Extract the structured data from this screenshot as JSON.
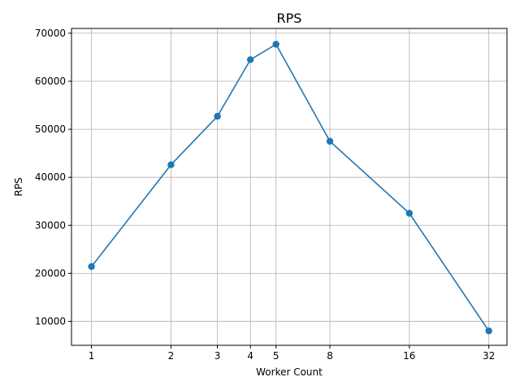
{
  "chart_data": {
    "type": "line",
    "title": "RPS",
    "xlabel": "Worker Count",
    "ylabel": "RPS",
    "x_scale": "log2",
    "x_ticks": [
      1,
      2,
      3,
      4,
      5,
      8,
      16,
      32
    ],
    "x_tick_labels": [
      "1",
      "2",
      "3",
      "4",
      "5",
      "8",
      "16",
      "32"
    ],
    "y_ticks": [
      10000,
      20000,
      30000,
      40000,
      50000,
      60000,
      70000
    ],
    "y_tick_labels": [
      "10000",
      "20000",
      "30000",
      "40000",
      "50000",
      "60000",
      "70000"
    ],
    "ylim": [
      5000,
      71000
    ],
    "grid": true,
    "series": [
      {
        "color": "#1f77b4",
        "marker": "circle",
        "points": [
          {
            "x": 1,
            "y": 21400
          },
          {
            "x": 2,
            "y": 42600
          },
          {
            "x": 3,
            "y": 52700
          },
          {
            "x": 4,
            "y": 64500
          },
          {
            "x": 5,
            "y": 67700
          },
          {
            "x": 8,
            "y": 47500
          },
          {
            "x": 16,
            "y": 32500
          },
          {
            "x": 32,
            "y": 8000
          }
        ]
      }
    ]
  }
}
